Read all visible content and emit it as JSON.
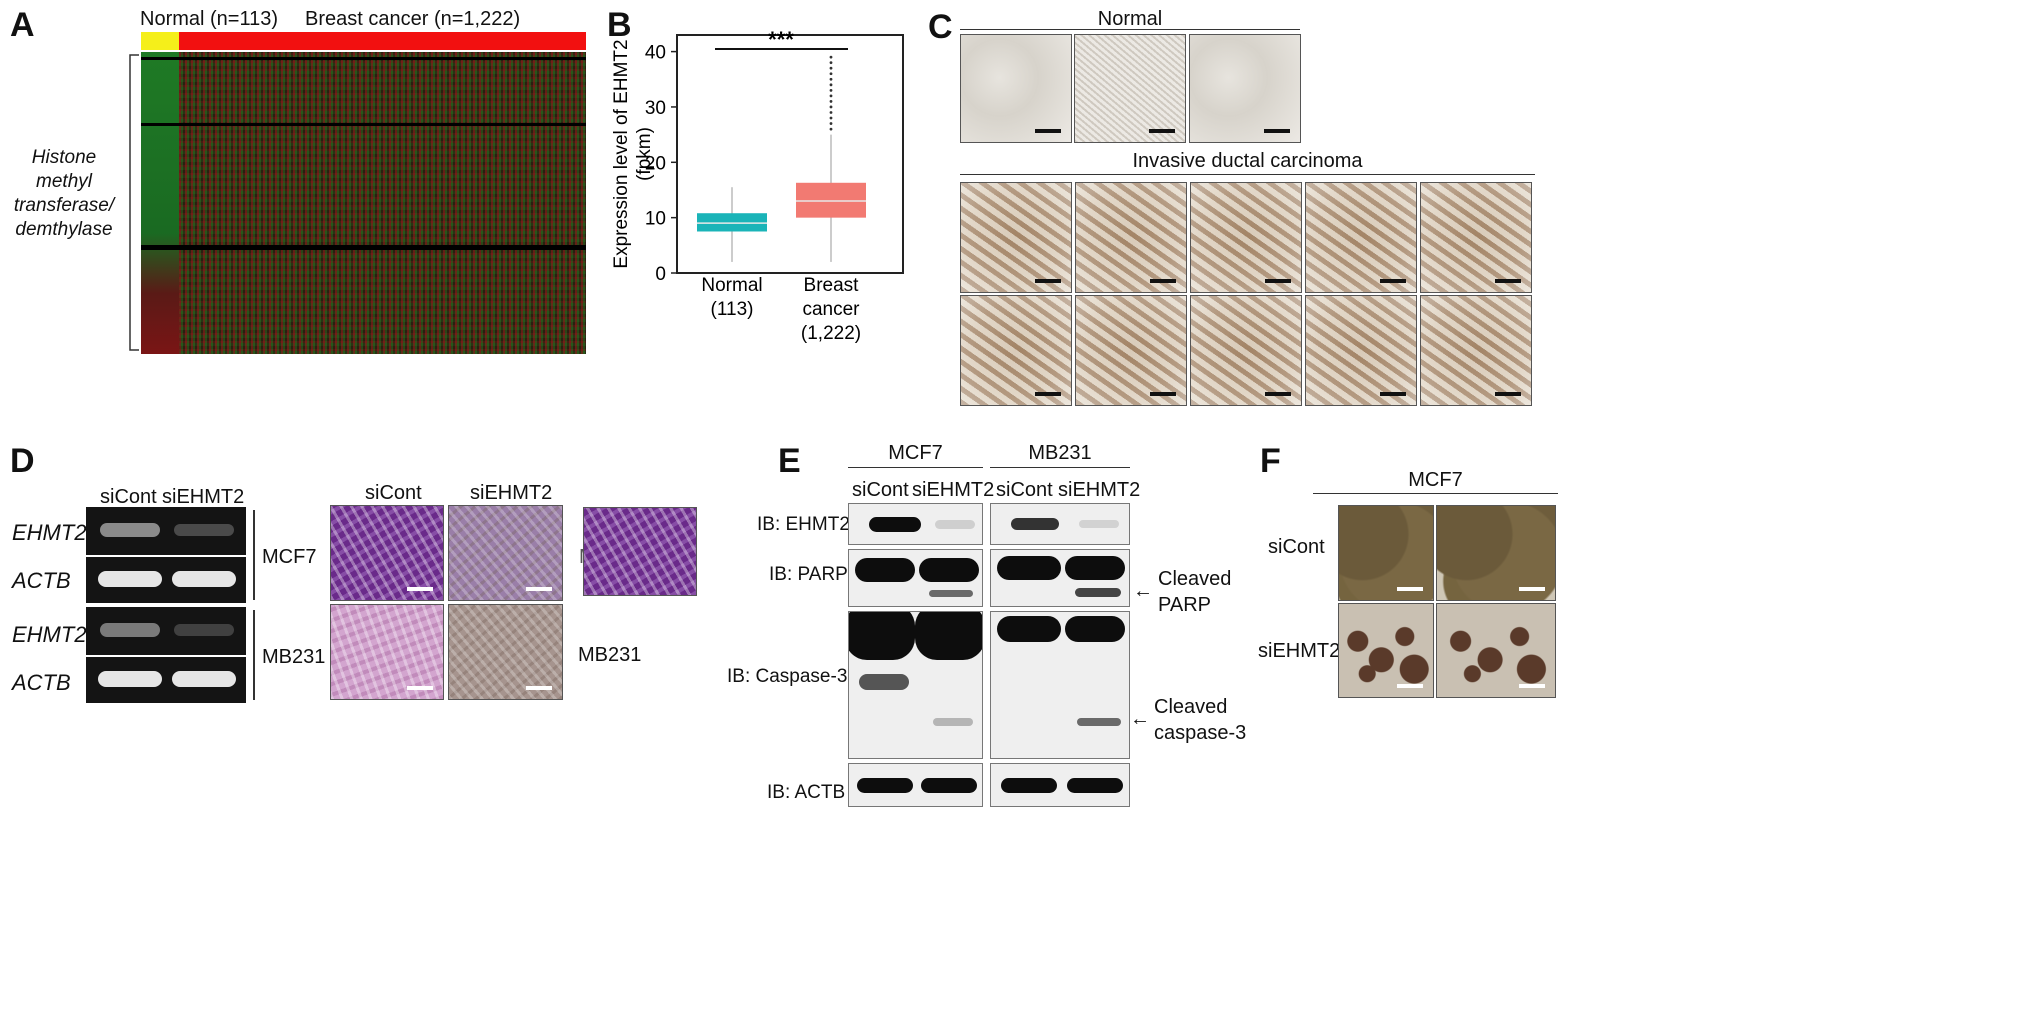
{
  "panels": {
    "A": {
      "letter": "A",
      "groups": [
        {
          "label": "Normal (n=113)",
          "color": "#f5ef1a"
        },
        {
          "label": "Breast cancer (n=1,222)",
          "color": "#f21010"
        }
      ],
      "row_label": [
        "Histone methyl",
        "transferase/",
        "demthylase"
      ],
      "heatmap_colors": {
        "low": "#1e7a1e",
        "high": "#8b1a1a",
        "mid": "#2a2a10"
      }
    },
    "B": {
      "letter": "B",
      "significance": "***",
      "ylabel_line1": "Expression level of EHMT2",
      "ylabel_line2": "(fpkm)",
      "yticks": [
        "0",
        "10",
        "20",
        "30",
        "40"
      ],
      "categories": [
        {
          "line1": "Normal",
          "line2": "(113)",
          "line3": ""
        },
        {
          "line1": "Breast",
          "line2": "cancer",
          "line3": "(1,222)"
        }
      ]
    },
    "C": {
      "letter": "C",
      "normal_label": "Normal",
      "idc_label": "Invasive ductal carcinoma"
    },
    "D": {
      "letter": "D",
      "gel_cols": [
        "siCont",
        "siEHMT2"
      ],
      "gel_rows": [
        "EHMT2",
        "ACTB",
        "EHMT2",
        "ACTB"
      ],
      "cell_lines": [
        "MCF7",
        "MB231"
      ],
      "image_cols": [
        "siCont",
        "siEHMT2"
      ],
      "cutoff_letter": "M",
      "image_row_label": "MB231"
    },
    "E": {
      "letter": "E",
      "cell_lines": [
        "MCF7",
        "MB231"
      ],
      "lanes": [
        "siCont",
        "siEHMT2",
        "siCont",
        "siEHMT2"
      ],
      "blots": [
        "IB: EHMT2",
        "IB: PARP",
        "IB: Caspase-3",
        "IB: ACTB"
      ],
      "annotations": [
        {
          "line1": "Cleaved",
          "line2": "PARP"
        },
        {
          "line1": "Cleaved",
          "line2": "caspase-3"
        }
      ],
      "arrow": "←"
    },
    "F": {
      "letter": "F",
      "cell_line": "MCF7",
      "rows": [
        "siCont",
        "siEHMT2"
      ]
    }
  },
  "chart_data": {
    "type": "box",
    "ylabel": "Expression level of EHMT2 (fpkm)",
    "ylim": [
      0,
      43
    ],
    "yticks": [
      0,
      10,
      20,
      30,
      40
    ],
    "categories": [
      "Normal (113)",
      "Breast cancer (1,222)"
    ],
    "series": [
      {
        "name": "Normal",
        "color": "#1ab4b8",
        "whisker_low": 2,
        "q1": 7.5,
        "median": 9,
        "q3": 10.8,
        "whisker_high": 15.5,
        "outliers": []
      },
      {
        "name": "Breast cancer",
        "color": "#f27a72",
        "whisker_low": 2,
        "q1": 10,
        "median": 13,
        "q3": 16.3,
        "whisker_high": 25,
        "outliers": [
          26,
          27,
          28,
          29,
          30,
          31,
          32,
          33,
          34,
          35,
          36,
          37,
          38,
          39
        ]
      }
    ],
    "significance": "***",
    "grid": false
  }
}
